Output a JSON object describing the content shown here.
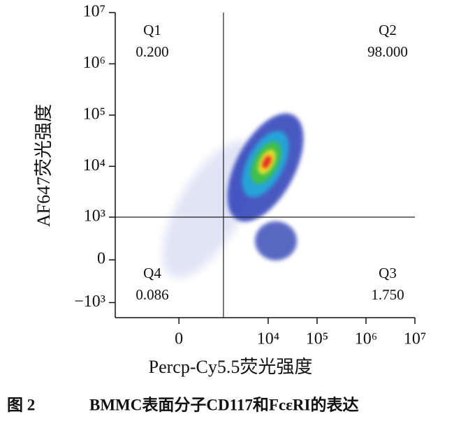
{
  "chart_data": {
    "type": "density",
    "figure_label": "图 2",
    "title": "BMMC表面分子CD117和FcεRI的表达",
    "x_label": "Percp-Cy5.5荧光强度",
    "y_label": "AF647荧光强度",
    "scale": "biexponential",
    "xlim": [
      -3000,
      10000000
    ],
    "ylim": [
      -2000,
      10000000
    ],
    "xticks": [
      0,
      {
        "value": 10000,
        "label": "10⁴"
      },
      {
        "value": 100000,
        "label": "10⁵"
      },
      {
        "value": 1000000,
        "label": "10⁶"
      },
      {
        "value": 10000000,
        "label": "10⁷"
      }
    ],
    "yticks": [
      {
        "value": -1000,
        "label": "−10³"
      },
      0,
      {
        "value": 1000,
        "label": "10³"
      },
      {
        "value": 10000,
        "label": "10⁴"
      },
      {
        "value": 100000,
        "label": "10⁵"
      },
      {
        "value": 1000000,
        "label": "10⁶"
      },
      {
        "value": 10000000,
        "label": "10⁷"
      }
    ],
    "gate": {
      "x": 1200,
      "y": 1000
    },
    "quadrants": {
      "names": [
        "Q1",
        "Q2",
        "Q3",
        "Q4"
      ],
      "values": [
        0.2,
        98,
        1.75,
        0.086
      ],
      "value_labels": [
        "0.200",
        "98.000",
        "1.750",
        "0.086"
      ]
    }
  }
}
